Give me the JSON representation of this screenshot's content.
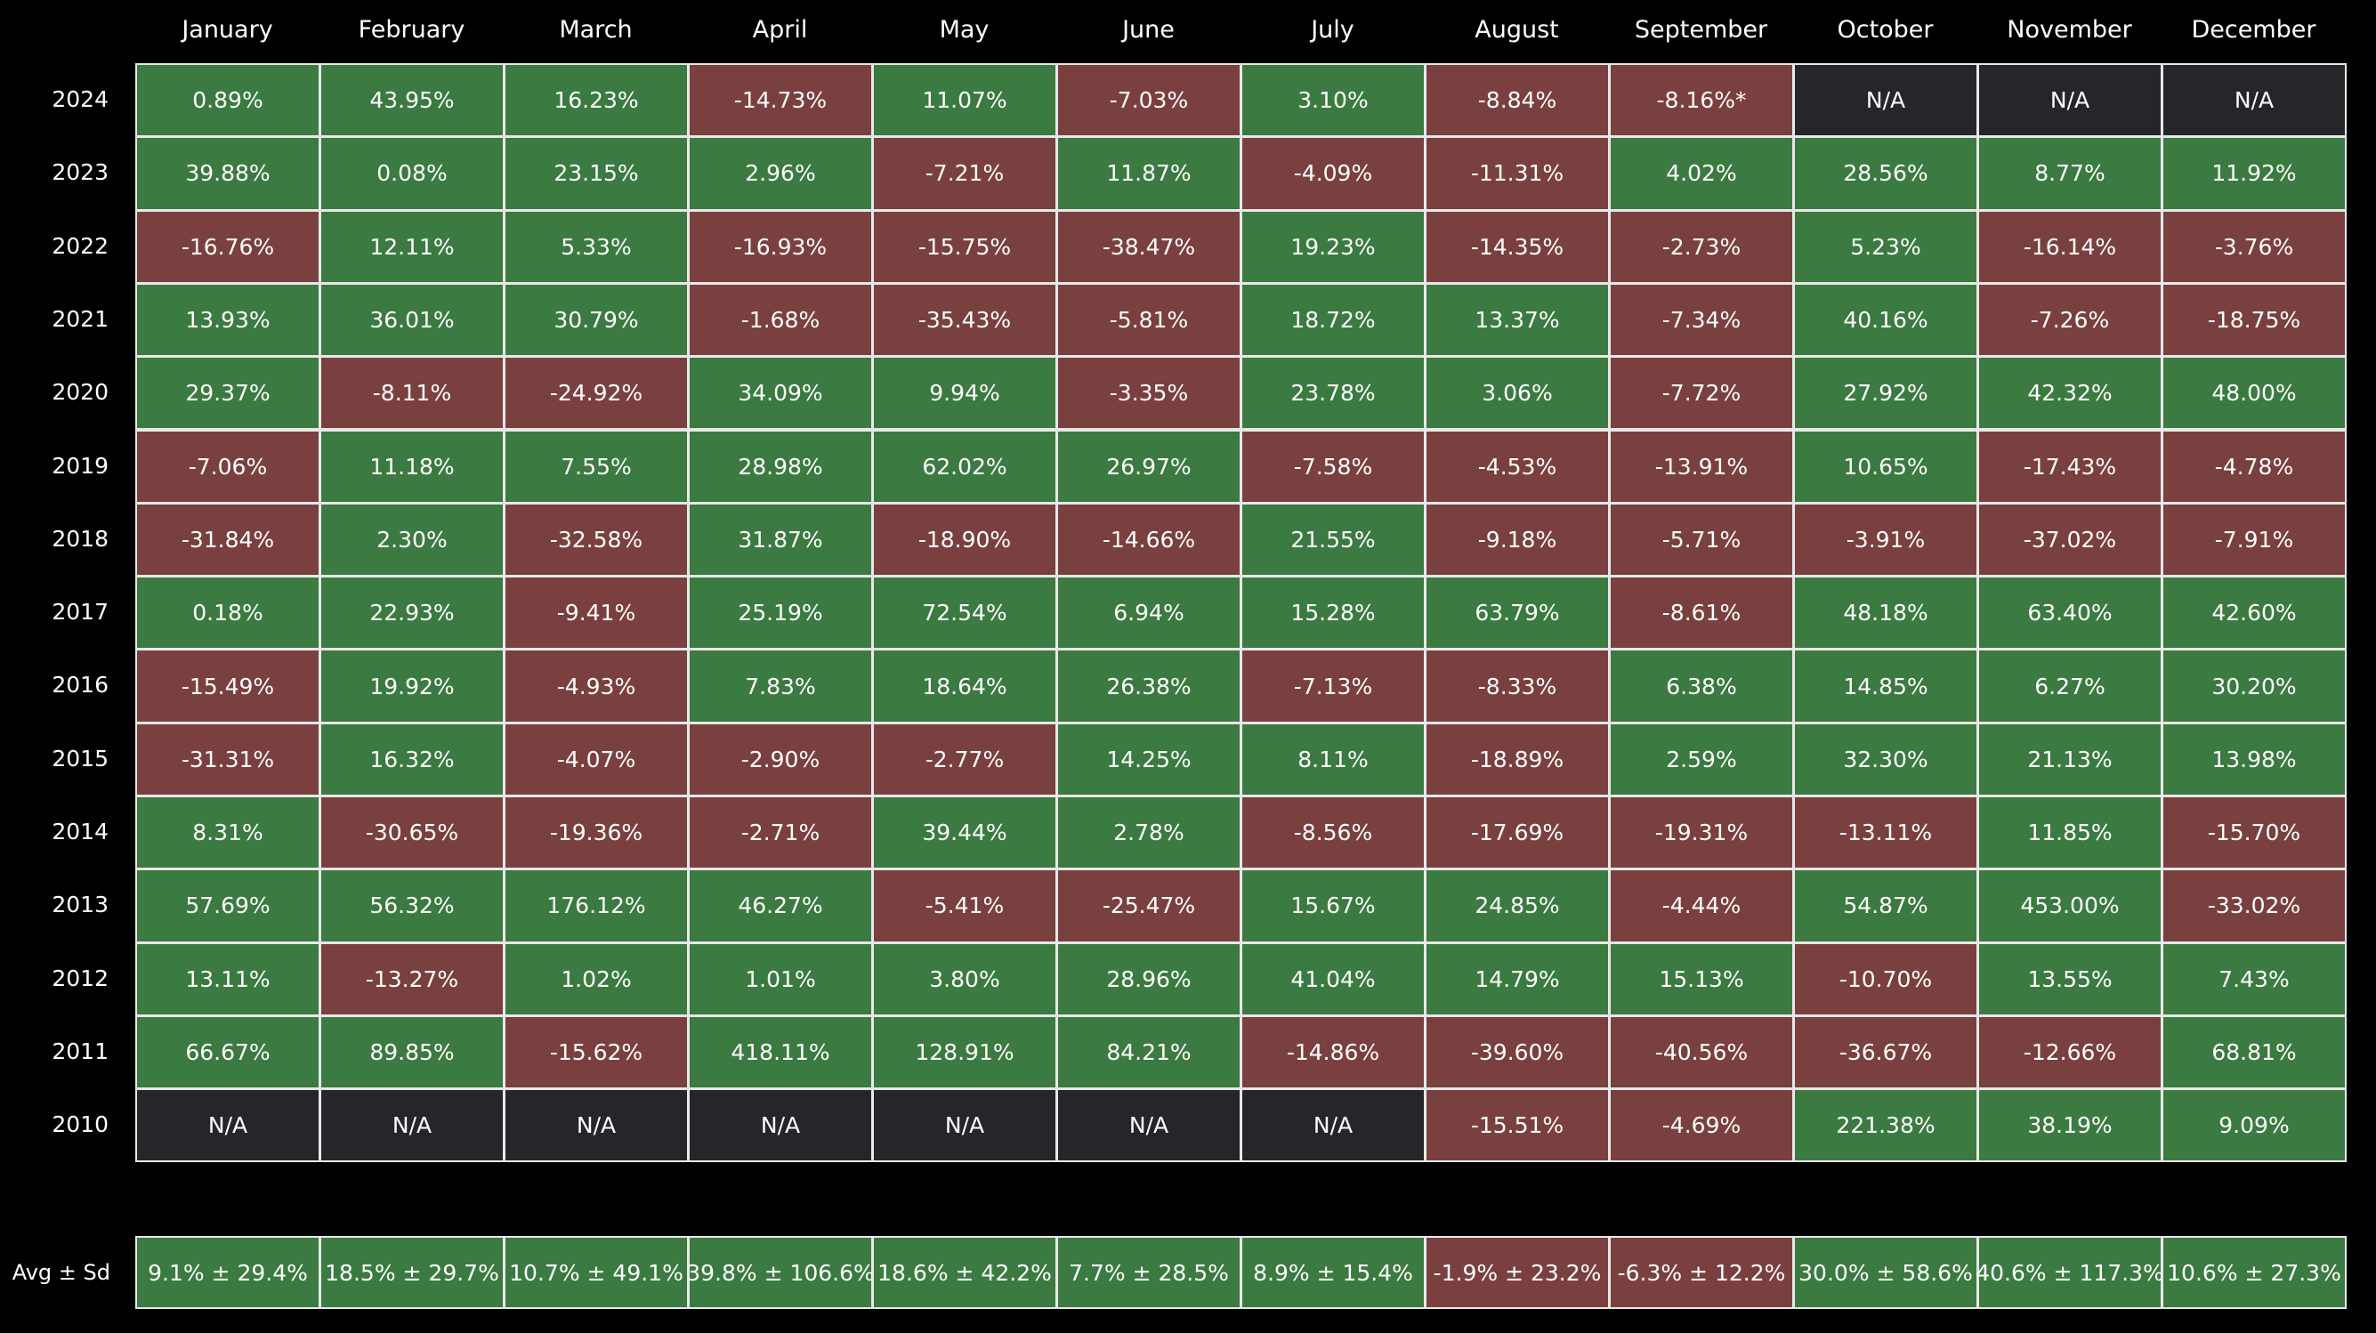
{
  "chart_data": {
    "type": "heatmap",
    "title": "",
    "months": [
      "January",
      "February",
      "March",
      "April",
      "May",
      "June",
      "July",
      "August",
      "September",
      "October",
      "November",
      "December"
    ],
    "colors": {
      "positive": "#3b7a40",
      "negative": "#7a4040",
      "na": "#25262a",
      "background": "#000000",
      "grid": "#e8e8e8"
    },
    "rows": [
      {
        "year": "2024",
        "values": [
          "0.89%",
          "43.95%",
          "16.23%",
          "-14.73%",
          "11.07%",
          "-7.03%",
          "3.10%",
          "-8.84%",
          "-8.16%*",
          "N/A",
          "N/A",
          "N/A"
        ]
      },
      {
        "year": "2023",
        "values": [
          "39.88%",
          "0.08%",
          "23.15%",
          "2.96%",
          "-7.21%",
          "11.87%",
          "-4.09%",
          "-11.31%",
          "4.02%",
          "28.56%",
          "8.77%",
          "11.92%"
        ]
      },
      {
        "year": "2022",
        "values": [
          "-16.76%",
          "12.11%",
          "5.33%",
          "-16.93%",
          "-15.75%",
          "-38.47%",
          "19.23%",
          "-14.35%",
          "-2.73%",
          "5.23%",
          "-16.14%",
          "-3.76%"
        ]
      },
      {
        "year": "2021",
        "values": [
          "13.93%",
          "36.01%",
          "30.79%",
          "-1.68%",
          "-35.43%",
          "-5.81%",
          "18.72%",
          "13.37%",
          "-7.34%",
          "40.16%",
          "-7.26%",
          "-18.75%"
        ]
      },
      {
        "year": "2020",
        "values": [
          "29.37%",
          "-8.11%",
          "-24.92%",
          "34.09%",
          "9.94%",
          "-3.35%",
          "23.78%",
          "3.06%",
          "-7.72%",
          "27.92%",
          "42.32%",
          "48.00%"
        ]
      },
      {
        "year": "2019",
        "values": [
          "-7.06%",
          "11.18%",
          "7.55%",
          "28.98%",
          "62.02%",
          "26.97%",
          "-7.58%",
          "-4.53%",
          "-13.91%",
          "10.65%",
          "-17.43%",
          "-4.78%"
        ]
      },
      {
        "year": "2018",
        "values": [
          "-31.84%",
          "2.30%",
          "-32.58%",
          "31.87%",
          "-18.90%",
          "-14.66%",
          "21.55%",
          "-9.18%",
          "-5.71%",
          "-3.91%",
          "-37.02%",
          "-7.91%"
        ]
      },
      {
        "year": "2017",
        "values": [
          "0.18%",
          "22.93%",
          "-9.41%",
          "25.19%",
          "72.54%",
          "6.94%",
          "15.28%",
          "63.79%",
          "-8.61%",
          "48.18%",
          "63.40%",
          "42.60%"
        ]
      },
      {
        "year": "2016",
        "values": [
          "-15.49%",
          "19.92%",
          "-4.93%",
          "7.83%",
          "18.64%",
          "26.38%",
          "-7.13%",
          "-8.33%",
          "6.38%",
          "14.85%",
          "6.27%",
          "30.20%"
        ]
      },
      {
        "year": "2015",
        "values": [
          "-31.31%",
          "16.32%",
          "-4.07%",
          "-2.90%",
          "-2.77%",
          "14.25%",
          "8.11%",
          "-18.89%",
          "2.59%",
          "32.30%",
          "21.13%",
          "13.98%"
        ]
      },
      {
        "year": "2014",
        "values": [
          "8.31%",
          "-30.65%",
          "-19.36%",
          "-2.71%",
          "39.44%",
          "2.78%",
          "-8.56%",
          "-17.69%",
          "-19.31%",
          "-13.11%",
          "11.85%",
          "-15.70%"
        ]
      },
      {
        "year": "2013",
        "values": [
          "57.69%",
          "56.32%",
          "176.12%",
          "46.27%",
          "-5.41%",
          "-25.47%",
          "15.67%",
          "24.85%",
          "-4.44%",
          "54.87%",
          "453.00%",
          "-33.02%"
        ]
      },
      {
        "year": "2012",
        "values": [
          "13.11%",
          "-13.27%",
          "1.02%",
          "1.01%",
          "3.80%",
          "28.96%",
          "41.04%",
          "14.79%",
          "15.13%",
          "-10.70%",
          "13.55%",
          "7.43%"
        ]
      },
      {
        "year": "2011",
        "values": [
          "66.67%",
          "89.85%",
          "-15.62%",
          "418.11%",
          "128.91%",
          "84.21%",
          "-14.86%",
          "-39.60%",
          "-40.56%",
          "-36.67%",
          "-12.66%",
          "68.81%"
        ]
      },
      {
        "year": "2010",
        "values": [
          "N/A",
          "N/A",
          "N/A",
          "N/A",
          "N/A",
          "N/A",
          "N/A",
          "-15.51%",
          "-4.69%",
          "221.38%",
          "38.19%",
          "9.09%"
        ]
      }
    ],
    "summary": {
      "label": "Avg ± Sd",
      "values": [
        "9.1% ± 29.4%",
        "18.5% ± 29.7%",
        "10.7% ± 49.1%",
        "39.8% ± 106.6%",
        "18.6% ± 42.2%",
        "7.7% ± 28.5%",
        "8.9% ± 15.4%",
        "-1.9% ± 23.2%",
        "-6.3% ± 12.2%",
        "30.0% ± 58.6%",
        "40.6% ± 117.3%",
        "10.6% ± 27.3%"
      ]
    }
  }
}
